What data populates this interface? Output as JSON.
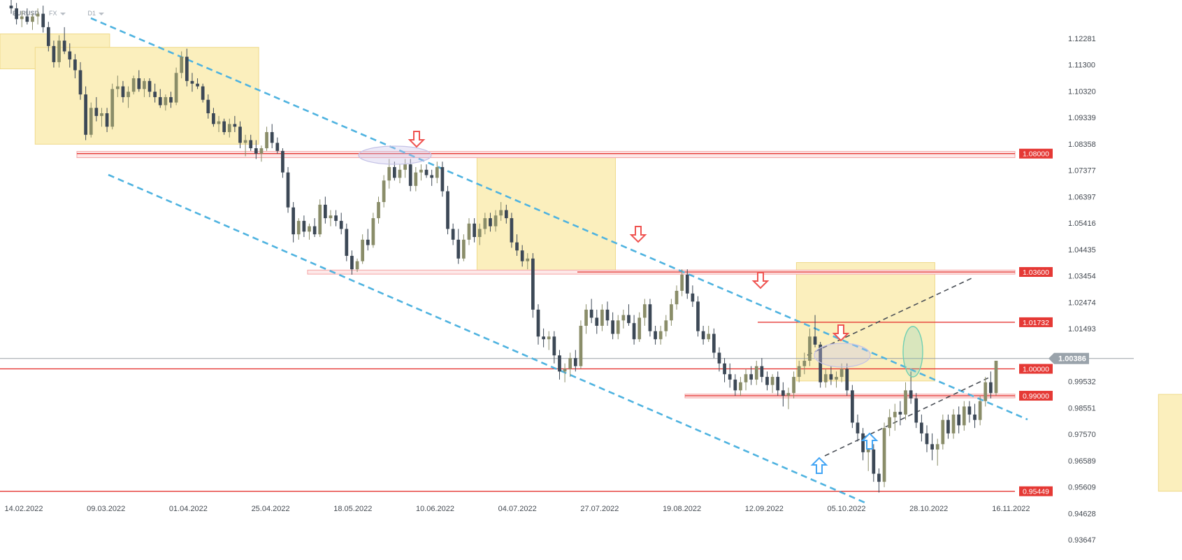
{
  "header": {
    "symbol": "EURUSD",
    "market": "FX",
    "timeframe": "D1"
  },
  "colors": {
    "bull": "#8a8d69",
    "bear": "#3c4856",
    "channel": "#4fb3e0",
    "level": "#e53935",
    "zone_fill": "#fbefbd",
    "zone_border": "#efd98a",
    "arrow_down": "#ef5350",
    "arrow_up": "#42a5f5",
    "grid": "#f2f2f2"
  },
  "chart_data": {
    "type": "candlestick",
    "ylim": [
      0.9355,
      1.1335
    ],
    "price_ticks": [
      "1.12281",
      "1.11300",
      "1.10320",
      "1.09339",
      "1.08358",
      "1.07377",
      "1.06397",
      "1.05416",
      "1.04435",
      "1.03454",
      "1.02474",
      "1.01493",
      "0.99532",
      "0.98551",
      "0.97570",
      "0.96589",
      "0.95609",
      "0.94628",
      "0.93647"
    ],
    "date_labels": [
      "14.02.2022",
      "09.03.2022",
      "01.04.2022",
      "25.04.2022",
      "18.05.2022",
      "10.06.2022",
      "04.07.2022",
      "27.07.2022",
      "19.08.2022",
      "12.09.2022",
      "05.10.2022",
      "28.10.2022",
      "16.11.2022"
    ],
    "current_price": {
      "value": 1.00386,
      "label": "1.00386"
    },
    "levels": [
      {
        "value": 1.08,
        "label": "1.08000"
      },
      {
        "value": 1.036,
        "label": "1.03600"
      },
      {
        "value": 1.01732,
        "label": "1.01732"
      },
      {
        "value": 1.0,
        "label": "1.00000"
      },
      {
        "value": 0.99,
        "label": "0.99000"
      },
      {
        "value": 0.95449,
        "label": "0.95449"
      }
    ],
    "candles": [
      [
        1.135,
        1.138,
        1.132,
        1.134
      ],
      [
        1.134,
        1.136,
        1.128,
        1.13
      ],
      [
        1.13,
        1.133,
        1.127,
        1.131
      ],
      [
        1.131,
        1.134,
        1.128,
        1.129
      ],
      [
        1.129,
        1.132,
        1.126,
        1.131
      ],
      [
        1.131,
        1.134,
        1.128,
        1.132
      ],
      [
        1.132,
        1.135,
        1.125,
        1.127
      ],
      [
        1.127,
        1.129,
        1.118,
        1.12
      ],
      [
        1.12,
        1.122,
        1.112,
        1.114
      ],
      [
        1.114,
        1.124,
        1.112,
        1.122
      ],
      [
        1.122,
        1.127,
        1.117,
        1.118
      ],
      [
        1.118,
        1.121,
        1.112,
        1.115
      ],
      [
        1.115,
        1.117,
        1.108,
        1.111
      ],
      [
        1.111,
        1.114,
        1.1,
        1.102
      ],
      [
        1.102,
        1.105,
        1.085,
        1.087
      ],
      [
        1.087,
        1.099,
        1.086,
        1.097
      ],
      [
        1.097,
        1.101,
        1.092,
        1.094
      ],
      [
        1.094,
        1.097,
        1.09,
        1.095
      ],
      [
        1.095,
        1.097,
        1.088,
        1.09
      ],
      [
        1.09,
        1.106,
        1.089,
        1.104
      ],
      [
        1.104,
        1.109,
        1.101,
        1.105
      ],
      [
        1.105,
        1.107,
        1.099,
        1.101
      ],
      [
        1.101,
        1.105,
        1.097,
        1.103
      ],
      [
        1.103,
        1.109,
        1.102,
        1.108
      ],
      [
        1.108,
        1.111,
        1.103,
        1.104
      ],
      [
        1.104,
        1.108,
        1.101,
        1.107
      ],
      [
        1.107,
        1.108,
        1.101,
        1.103
      ],
      [
        1.103,
        1.106,
        1.099,
        1.101
      ],
      [
        1.101,
        1.104,
        1.097,
        1.098
      ],
      [
        1.098,
        1.102,
        1.096,
        1.101
      ],
      [
        1.101,
        1.103,
        1.097,
        1.099
      ],
      [
        1.099,
        1.112,
        1.098,
        1.11
      ],
      [
        1.11,
        1.118,
        1.108,
        1.116
      ],
      [
        1.116,
        1.119,
        1.105,
        1.107
      ],
      [
        1.107,
        1.11,
        1.103,
        1.106
      ],
      [
        1.106,
        1.108,
        1.104,
        1.105
      ],
      [
        1.105,
        1.106,
        1.099,
        1.1
      ],
      [
        1.1,
        1.102,
        1.093,
        1.095
      ],
      [
        1.095,
        1.097,
        1.09,
        1.091
      ],
      [
        1.091,
        1.094,
        1.088,
        1.092
      ],
      [
        1.092,
        1.093,
        1.087,
        1.088
      ],
      [
        1.088,
        1.093,
        1.086,
        1.091
      ],
      [
        1.091,
        1.094,
        1.088,
        1.09
      ],
      [
        1.09,
        1.092,
        1.082,
        1.084
      ],
      [
        1.084,
        1.087,
        1.079,
        1.085
      ],
      [
        1.085,
        1.087,
        1.081,
        1.082
      ],
      [
        1.082,
        1.085,
        1.078,
        1.08
      ],
      [
        1.08,
        1.083,
        1.077,
        1.082
      ],
      [
        1.082,
        1.09,
        1.081,
        1.088
      ],
      [
        1.088,
        1.091,
        1.082,
        1.084
      ],
      [
        1.084,
        1.086,
        1.08,
        1.081
      ],
      [
        1.081,
        1.082,
        1.071,
        1.073
      ],
      [
        1.073,
        1.075,
        1.058,
        1.06
      ],
      [
        1.06,
        1.062,
        1.047,
        1.05
      ],
      [
        1.05,
        1.056,
        1.048,
        1.055
      ],
      [
        1.055,
        1.057,
        1.049,
        1.051
      ],
      [
        1.051,
        1.054,
        1.048,
        1.053
      ],
      [
        1.053,
        1.056,
        1.049,
        1.05
      ],
      [
        1.05,
        1.063,
        1.049,
        1.061
      ],
      [
        1.061,
        1.064,
        1.054,
        1.056
      ],
      [
        1.056,
        1.059,
        1.053,
        1.057
      ],
      [
        1.057,
        1.059,
        1.053,
        1.055
      ],
      [
        1.055,
        1.058,
        1.05,
        1.052
      ],
      [
        1.052,
        1.054,
        1.04,
        1.042
      ],
      [
        1.042,
        1.044,
        1.035,
        1.037
      ],
      [
        1.037,
        1.041,
        1.036,
        1.04
      ],
      [
        1.04,
        1.05,
        1.039,
        1.048
      ],
      [
        1.048,
        1.052,
        1.044,
        1.046
      ],
      [
        1.046,
        1.058,
        1.045,
        1.056
      ],
      [
        1.056,
        1.064,
        1.054,
        1.062
      ],
      [
        1.062,
        1.072,
        1.06,
        1.07
      ],
      [
        1.07,
        1.078,
        1.067,
        1.075
      ],
      [
        1.075,
        1.077,
        1.07,
        1.071
      ],
      [
        1.071,
        1.076,
        1.069,
        1.074
      ],
      [
        1.074,
        1.078,
        1.071,
        1.076
      ],
      [
        1.076,
        1.078,
        1.066,
        1.068
      ],
      [
        1.068,
        1.075,
        1.066,
        1.073
      ],
      [
        1.073,
        1.076,
        1.07,
        1.074
      ],
      [
        1.074,
        1.076,
        1.071,
        1.072
      ],
      [
        1.072,
        1.074,
        1.068,
        1.071
      ],
      [
        1.071,
        1.077,
        1.069,
        1.075
      ],
      [
        1.075,
        1.077,
        1.064,
        1.066
      ],
      [
        1.066,
        1.068,
        1.05,
        1.052
      ],
      [
        1.052,
        1.054,
        1.046,
        1.048
      ],
      [
        1.048,
        1.052,
        1.039,
        1.041
      ],
      [
        1.041,
        1.05,
        1.04,
        1.048
      ],
      [
        1.048,
        1.056,
        1.046,
        1.054
      ],
      [
        1.054,
        1.056,
        1.047,
        1.049
      ],
      [
        1.049,
        1.054,
        1.046,
        1.052
      ],
      [
        1.052,
        1.058,
        1.05,
        1.056
      ],
      [
        1.056,
        1.058,
        1.051,
        1.053
      ],
      [
        1.053,
        1.059,
        1.051,
        1.057
      ],
      [
        1.057,
        1.062,
        1.055,
        1.059
      ],
      [
        1.059,
        1.061,
        1.054,
        1.056
      ],
      [
        1.056,
        1.058,
        1.045,
        1.047
      ],
      [
        1.047,
        1.05,
        1.042,
        1.044
      ],
      [
        1.044,
        1.046,
        1.038,
        1.04
      ],
      [
        1.04,
        1.043,
        1.037,
        1.041
      ],
      [
        1.041,
        1.043,
        1.019,
        1.022
      ],
      [
        1.022,
        1.024,
        1.009,
        1.012
      ],
      [
        1.012,
        1.015,
        1.008,
        1.011
      ],
      [
        1.011,
        1.014,
        1.007,
        1.012
      ],
      [
        1.012,
        1.014,
        1.002,
        1.005
      ],
      [
        1.005,
        1.007,
        0.996,
        0.999
      ],
      [
        0.999,
        1.002,
        0.995,
        1.0
      ],
      [
        1.0,
        1.006,
        0.997,
        1.004
      ],
      [
        1.004,
        1.007,
        0.999,
        1.001
      ],
      [
        1.001,
        1.018,
        1.0,
        1.016
      ],
      [
        1.016,
        1.024,
        1.013,
        1.022
      ],
      [
        1.022,
        1.026,
        1.017,
        1.019
      ],
      [
        1.019,
        1.022,
        1.013,
        1.016
      ],
      [
        1.016,
        1.024,
        1.014,
        1.022
      ],
      [
        1.022,
        1.025,
        1.016,
        1.018
      ],
      [
        1.018,
        1.021,
        1.011,
        1.013
      ],
      [
        1.013,
        1.02,
        1.011,
        1.018
      ],
      [
        1.018,
        1.022,
        1.015,
        1.02
      ],
      [
        1.02,
        1.024,
        1.016,
        1.017
      ],
      [
        1.017,
        1.02,
        1.009,
        1.011
      ],
      [
        1.011,
        1.021,
        1.01,
        1.019
      ],
      [
        1.019,
        1.026,
        1.016,
        1.024
      ],
      [
        1.024,
        1.026,
        1.012,
        1.014
      ],
      [
        1.014,
        1.016,
        1.009,
        1.011
      ],
      [
        1.011,
        1.016,
        1.009,
        1.014
      ],
      [
        1.014,
        1.02,
        1.012,
        1.018
      ],
      [
        1.018,
        1.026,
        1.016,
        1.024
      ],
      [
        1.024,
        1.031,
        1.022,
        1.029
      ],
      [
        1.029,
        1.037,
        1.027,
        1.035
      ],
      [
        1.035,
        1.037,
        1.026,
        1.028
      ],
      [
        1.028,
        1.031,
        1.023,
        1.025
      ],
      [
        1.025,
        1.027,
        1.012,
        1.014
      ],
      [
        1.014,
        1.016,
        1.009,
        1.011
      ],
      [
        1.011,
        1.016,
        1.01,
        1.013
      ],
      [
        1.013,
        1.015,
        1.004,
        1.006
      ],
      [
        1.006,
        1.008,
        0.999,
        1.002
      ],
      [
        1.002,
        1.004,
        0.995,
        0.998
      ],
      [
        0.998,
        1.002,
        0.993,
        0.996
      ],
      [
        0.996,
        0.998,
        0.99,
        0.992
      ],
      [
        0.992,
        0.997,
        0.99,
        0.995
      ],
      [
        0.995,
        1.0,
        0.992,
        0.998
      ],
      [
        0.998,
        1.001,
        0.994,
        0.996
      ],
      [
        0.996,
        1.003,
        0.994,
        1.001
      ],
      [
        1.001,
        1.004,
        0.995,
        0.997
      ],
      [
        0.997,
        0.999,
        0.992,
        0.994
      ],
      [
        0.994,
        0.998,
        0.991,
        0.997
      ],
      [
        0.997,
        0.999,
        0.99,
        0.992
      ],
      [
        0.992,
        0.995,
        0.986,
        0.99
      ],
      [
        0.99,
        0.993,
        0.985,
        0.991
      ],
      [
        0.991,
        0.999,
        0.989,
        0.997
      ],
      [
        0.997,
        1.003,
        0.995,
        1.001
      ],
      [
        1.001,
        1.006,
        0.998,
        1.003
      ],
      [
        1.003,
        1.015,
        1.001,
        1.012
      ],
      [
        1.012,
        1.02,
        1.008,
        1.009
      ],
      [
        1.009,
        1.01,
        0.993,
        0.995
      ],
      [
        0.995,
        1.0,
        0.993,
        0.998
      ],
      [
        0.998,
        1.001,
        0.994,
        0.996
      ],
      [
        0.996,
        0.999,
        0.993,
        0.997
      ],
      [
        0.997,
        1.002,
        0.995,
        1.0
      ],
      [
        1.0,
        1.002,
        0.99,
        0.992
      ],
      [
        0.992,
        0.994,
        0.978,
        0.98
      ],
      [
        0.98,
        0.983,
        0.973,
        0.976
      ],
      [
        0.976,
        0.978,
        0.966,
        0.969
      ],
      [
        0.969,
        0.973,
        0.962,
        0.97
      ],
      [
        0.97,
        0.972,
        0.958,
        0.961
      ],
      [
        0.961,
        0.963,
        0.954,
        0.958
      ],
      [
        0.958,
        0.98,
        0.956,
        0.978
      ],
      [
        0.978,
        0.985,
        0.975,
        0.982
      ],
      [
        0.982,
        0.987,
        0.977,
        0.984
      ],
      [
        0.984,
        0.988,
        0.979,
        0.983
      ],
      [
        0.983,
        0.995,
        0.981,
        0.992
      ],
      [
        0.992,
        0.999,
        0.987,
        0.989
      ],
      [
        0.989,
        0.991,
        0.978,
        0.98
      ],
      [
        0.98,
        0.983,
        0.973,
        0.976
      ],
      [
        0.976,
        0.979,
        0.969,
        0.972
      ],
      [
        0.972,
        0.976,
        0.966,
        0.97
      ],
      [
        0.97,
        0.974,
        0.964,
        0.972
      ],
      [
        0.972,
        0.983,
        0.97,
        0.981
      ],
      [
        0.981,
        0.983,
        0.974,
        0.976
      ],
      [
        0.976,
        0.985,
        0.974,
        0.983
      ],
      [
        0.983,
        0.986,
        0.976,
        0.979
      ],
      [
        0.979,
        0.988,
        0.977,
        0.986
      ],
      [
        0.986,
        0.988,
        0.98,
        0.983
      ],
      [
        0.983,
        0.987,
        0.978,
        0.981
      ],
      [
        0.981,
        0.99,
        0.979,
        0.988
      ],
      [
        0.988,
        0.997,
        0.986,
        0.995
      ],
      [
        0.995,
        0.999,
        0.989,
        0.991
      ],
      [
        0.991,
        1.003,
        0.99,
        1.003
      ]
    ],
    "xlabel": "",
    "ylabel": "",
    "grid": false
  }
}
